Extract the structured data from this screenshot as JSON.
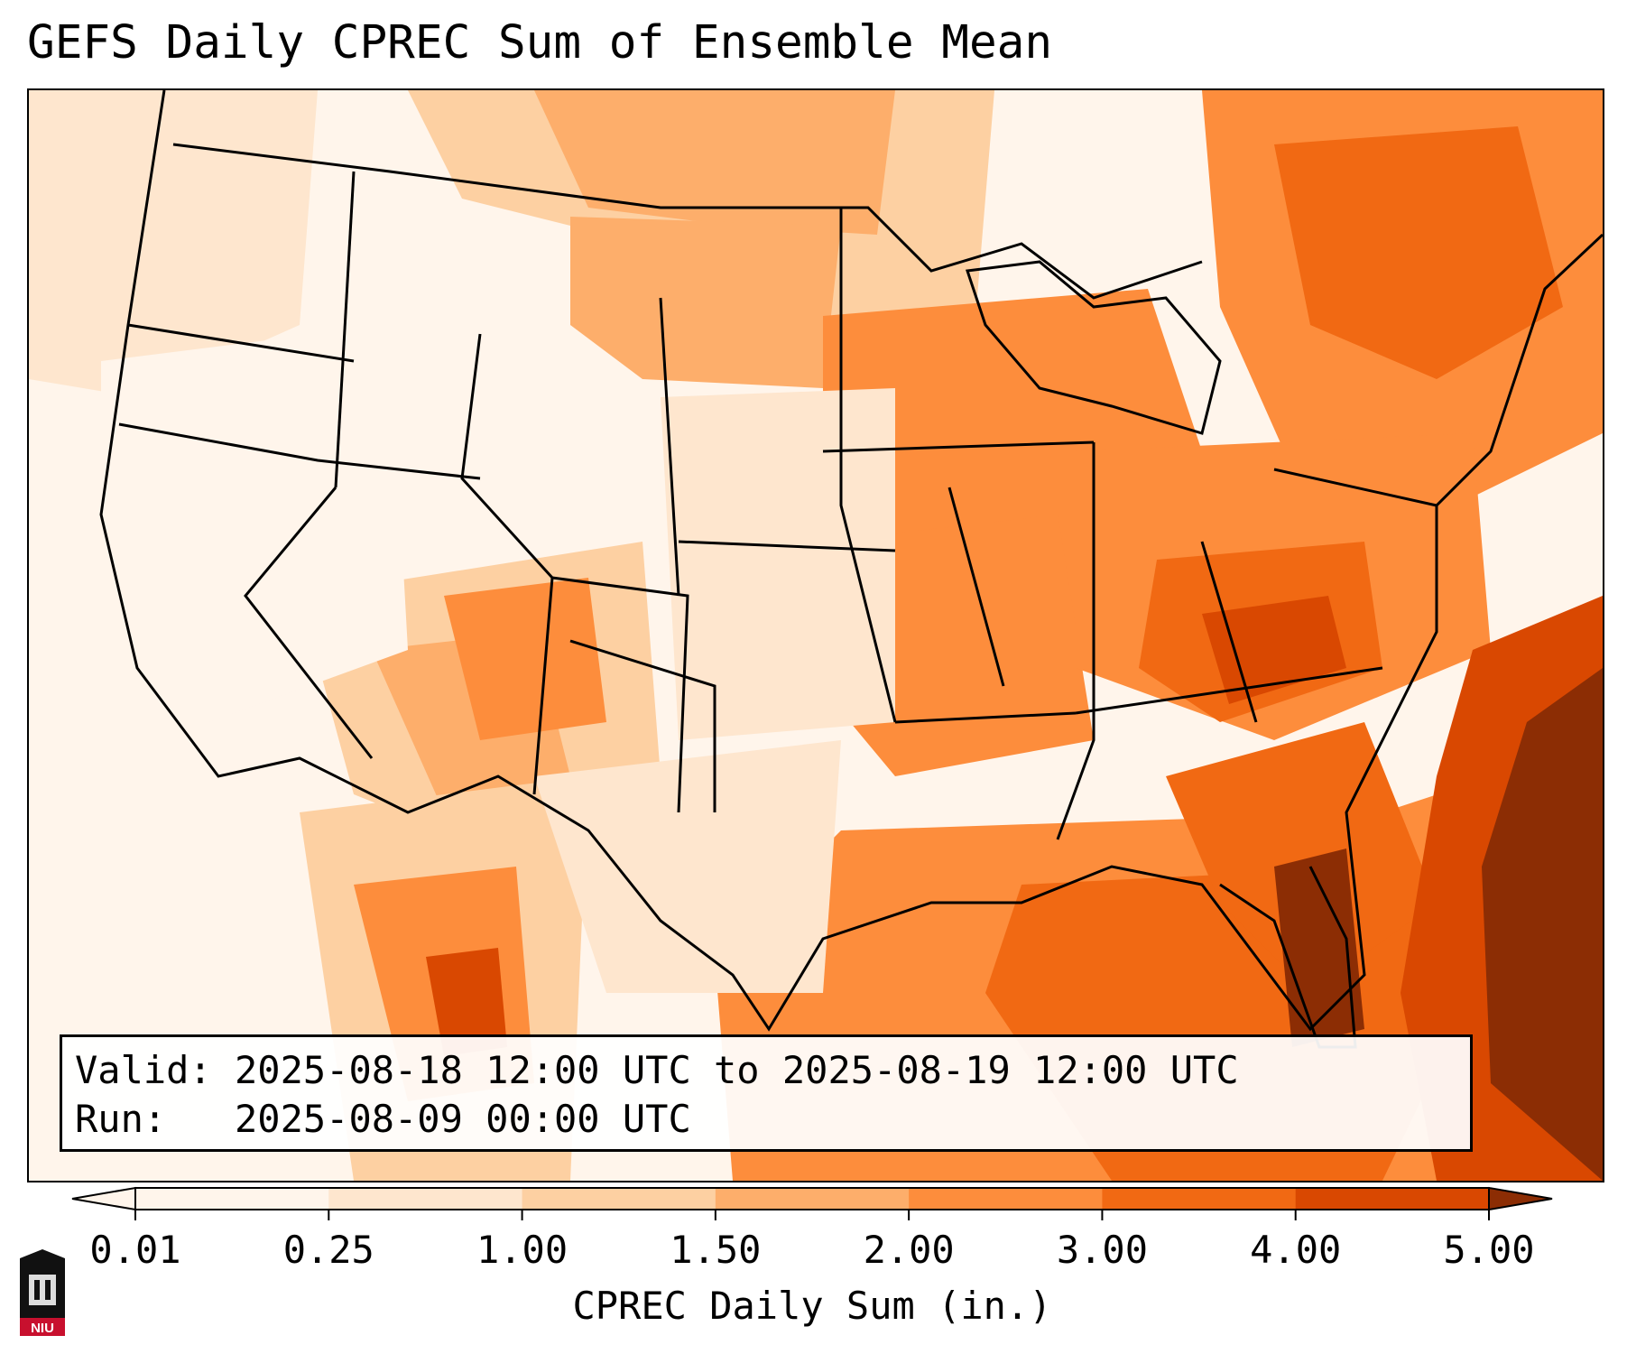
{
  "title": "GEFS Daily CPREC Sum of Ensemble Mean",
  "info": {
    "valid_label": "Valid:",
    "valid_value": "2025-08-18 12:00 UTC to 2025-08-19 12:00 UTC",
    "run_label": "Run:",
    "run_value": "2025-08-09 00:00 UTC"
  },
  "colorbar": {
    "label": "CPREC Daily Sum (in.)",
    "ticks": [
      "0.01",
      "0.25",
      "1.00",
      "1.50",
      "2.00",
      "3.00",
      "4.00",
      "5.00"
    ],
    "colors": [
      "#fff5eb",
      "#fee6ce",
      "#fdd0a2",
      "#fdae6b",
      "#fd8d3c",
      "#f16913",
      "#d94801",
      "#8c2d04"
    ],
    "extend": "both"
  },
  "logo": {
    "text": "NIU",
    "accent_color": "#c8102e"
  },
  "map": {
    "region": "CONUS",
    "ocean_color": "#fff7ec",
    "boundary_color": "#000000"
  }
}
